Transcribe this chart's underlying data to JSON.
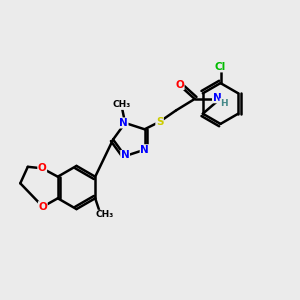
{
  "bg_color": "#ebebeb",
  "bond_color": "#000000",
  "bond_width": 1.8,
  "atom_colors": {
    "N": "#0000ff",
    "O": "#ff0000",
    "S": "#cccc00",
    "Cl": "#00bb00",
    "C": "#000000",
    "H": "#448888"
  },
  "fs": 7.5,
  "fss": 6.5
}
